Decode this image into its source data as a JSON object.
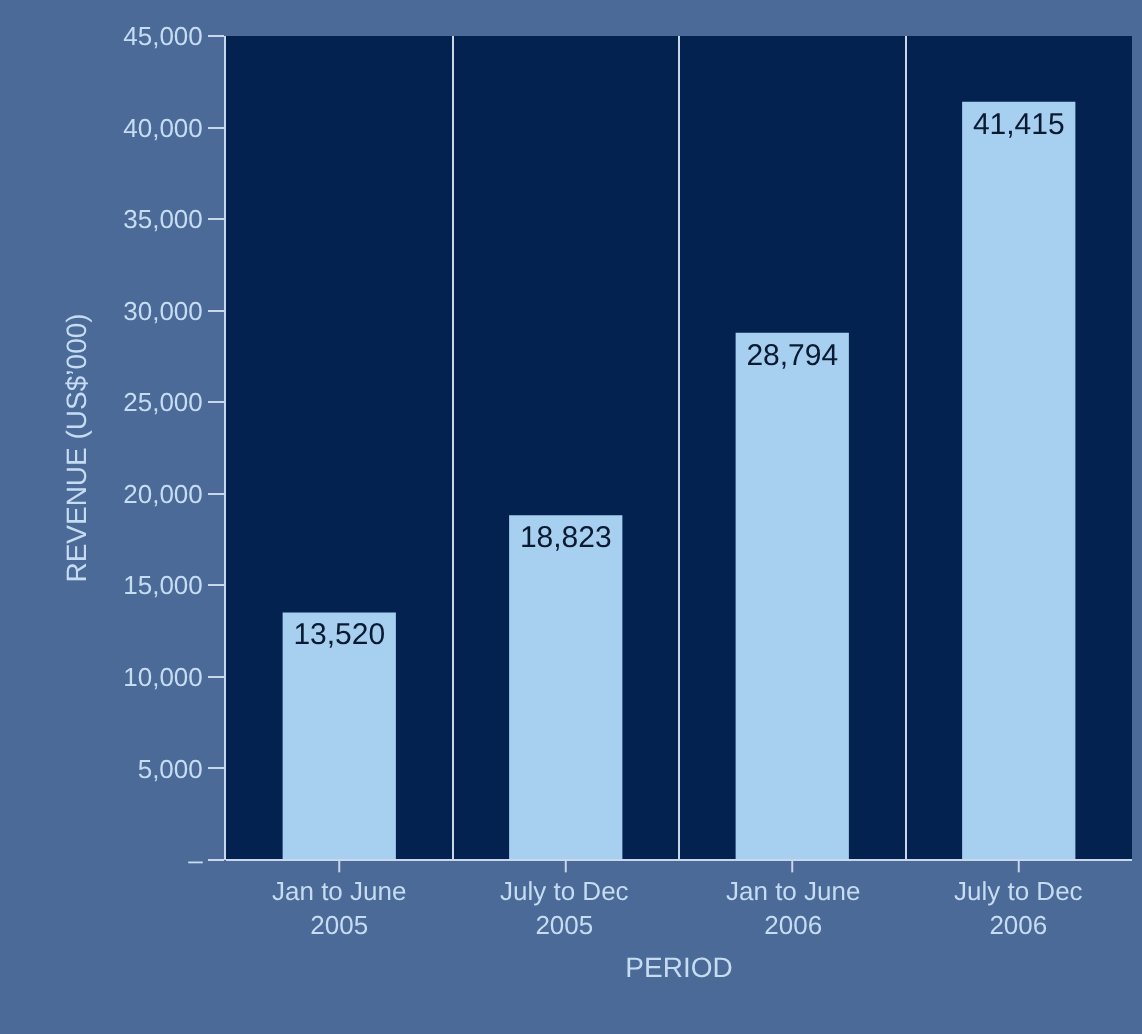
{
  "chart_data": {
    "type": "bar",
    "xlabel": "PERIOD",
    "ylabel": "REVENUE (US$’000)",
    "categories": [
      "Jan to June\n2005",
      "July to Dec\n2005",
      "Jan to June\n2006",
      "July to Dec\n2006"
    ],
    "values": [
      13520,
      18823,
      28794,
      41415
    ],
    "color": "#a6cff0",
    "value_labels": [
      "13,520",
      "18,823",
      "28,794",
      "41,415"
    ],
    "ylim": [
      0,
      45000
    ],
    "yticks": [
      {
        "value": 0,
        "label": "–"
      },
      {
        "value": 5000,
        "label": "5,000"
      },
      {
        "value": 10000,
        "label": "10,000"
      },
      {
        "value": 15000,
        "label": "15,000"
      },
      {
        "value": 20000,
        "label": "20,000"
      },
      {
        "value": 25000,
        "label": "25,000"
      },
      {
        "value": 30000,
        "label": "30,000"
      },
      {
        "value": 35000,
        "label": "35,000"
      },
      {
        "value": 40000,
        "label": "40,000"
      },
      {
        "value": 45000,
        "label": "45,000"
      }
    ],
    "grid": "x"
  }
}
